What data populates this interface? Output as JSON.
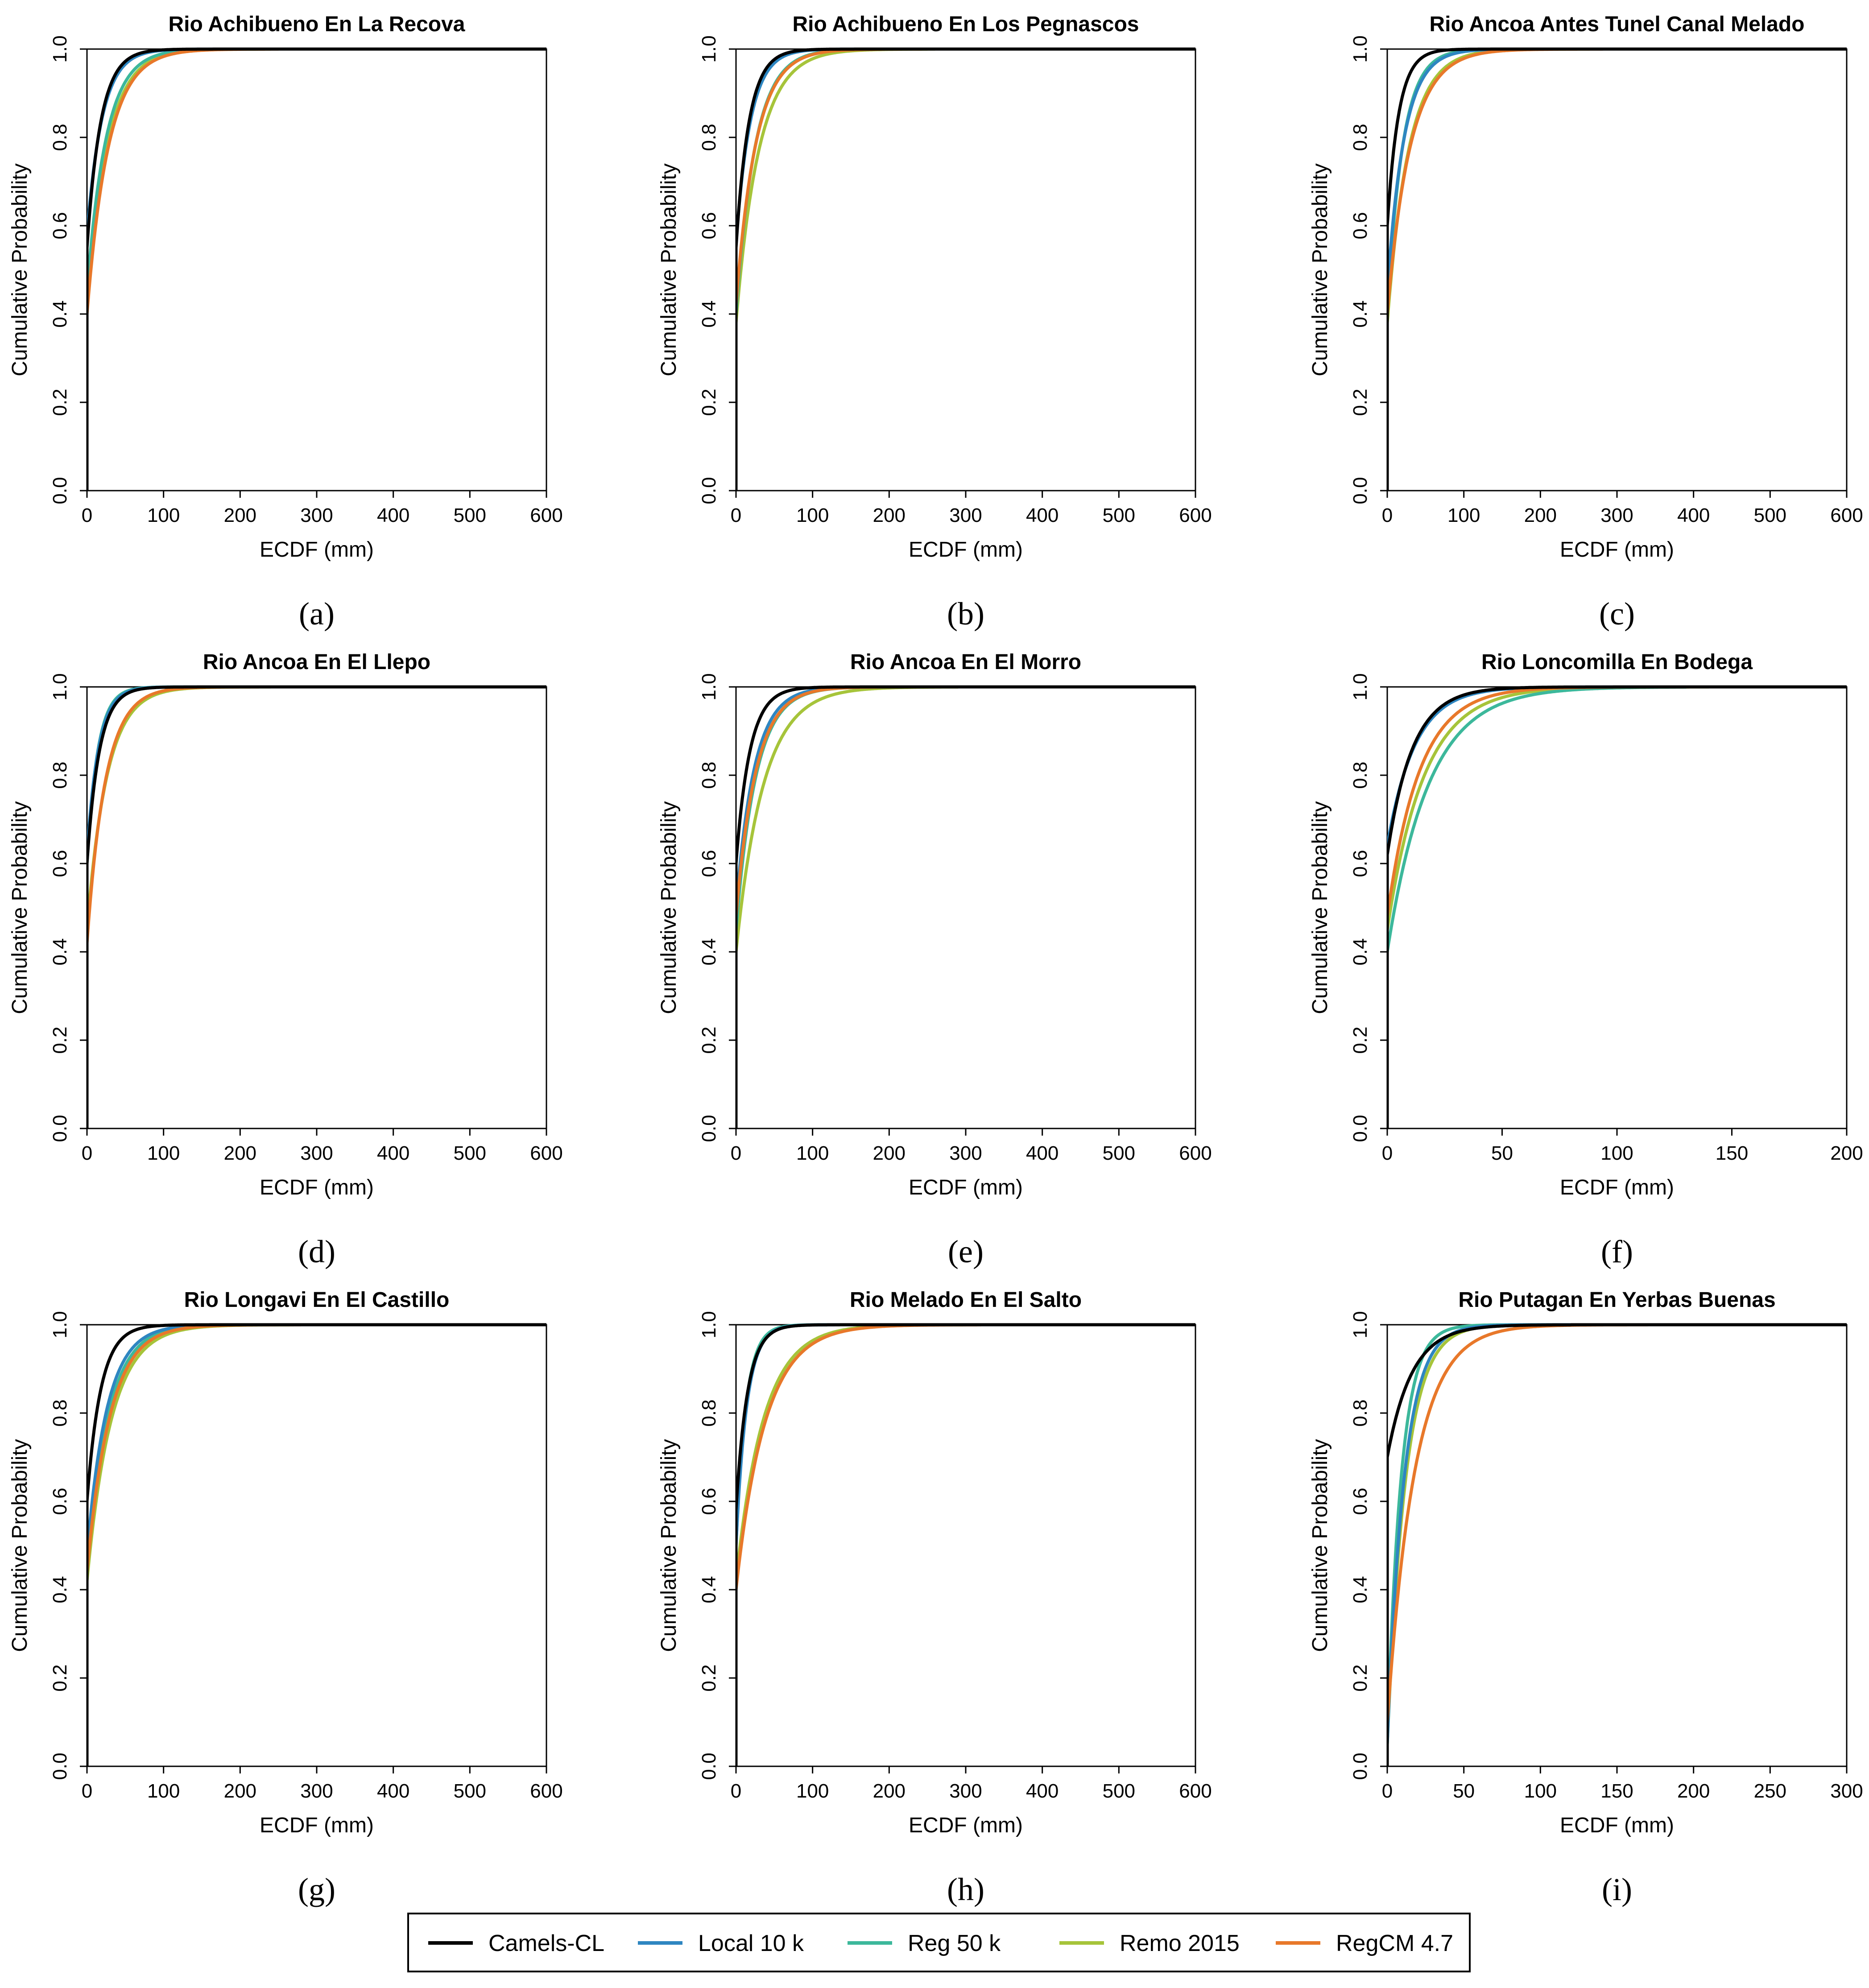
{
  "colors": {
    "Camels-CL": "#000000",
    "Local 10 k": "#2E86C1",
    "Reg 50 k": "#3CB89B",
    "Remo 2015": "#A6C43A",
    "RegCM 4.7": "#E8782A"
  },
  "legend": {
    "items": [
      {
        "name": "Camels-CL",
        "color": "#000000"
      },
      {
        "name": "Local 10 k",
        "color": "#2E86C1"
      },
      {
        "name": "Reg 50 k",
        "color": "#3CB89B"
      },
      {
        "name": "Remo 2015",
        "color": "#A6C43A"
      },
      {
        "name": "RegCM 4.7",
        "color": "#E8782A"
      }
    ]
  },
  "chart_data": [
    {
      "label": "(a)",
      "type": "line",
      "title": "Rio Achibueno En La Recova",
      "xlabel": "ECDF (mm)",
      "ylabel": "Cumulative Probability",
      "xlim": [
        0,
        600
      ],
      "ylim": [
        0,
        1
      ],
      "xticks": [
        0,
        100,
        200,
        300,
        400,
        500,
        600
      ],
      "yticks": [
        0.0,
        0.2,
        0.4,
        0.6,
        0.8,
        1.0
      ],
      "series": [
        {
          "name": "Camels-CL",
          "p0": 0.55,
          "scale": 18,
          "xmax": 180
        },
        {
          "name": "Local 10 k",
          "p0": 0.58,
          "scale": 20,
          "xmax": 200
        },
        {
          "name": "Reg 50 k",
          "p0": 0.45,
          "scale": 25,
          "xmax": 220
        },
        {
          "name": "Remo 2015",
          "p0": 0.42,
          "scale": 27,
          "xmax": 240
        },
        {
          "name": "RegCM 4.7",
          "p0": 0.4,
          "scale": 28,
          "xmax": 250
        }
      ]
    },
    {
      "label": "(b)",
      "type": "line",
      "title": "Rio Achibueno En Los Pegnascos",
      "xlabel": "ECDF (mm)",
      "ylabel": "Cumulative Probability",
      "xlim": [
        0,
        600
      ],
      "ylim": [
        0,
        1
      ],
      "xticks": [
        0,
        100,
        200,
        300,
        400,
        500,
        600
      ],
      "yticks": [
        0.0,
        0.2,
        0.4,
        0.6,
        0.8,
        1.0
      ],
      "series": [
        {
          "name": "Camels-CL",
          "p0": 0.55,
          "scale": 17,
          "xmax": 180
        },
        {
          "name": "Local 10 k",
          "p0": 0.56,
          "scale": 19,
          "xmax": 200
        },
        {
          "name": "Reg 50 k",
          "p0": 0.4,
          "scale": 25,
          "xmax": 230
        },
        {
          "name": "Remo 2015",
          "p0": 0.38,
          "scale": 30,
          "xmax": 260
        },
        {
          "name": "RegCM 4.7",
          "p0": 0.42,
          "scale": 26,
          "xmax": 250
        }
      ]
    },
    {
      "label": "(c)",
      "type": "line",
      "title": "Rio Ancoa Antes Tunel Canal Melado",
      "xlabel": "ECDF (mm)",
      "ylabel": "Cumulative Probability",
      "xlim": [
        0,
        600
      ],
      "ylim": [
        0,
        1
      ],
      "xticks": [
        0,
        100,
        200,
        300,
        400,
        500,
        600
      ],
      "yticks": [
        0.0,
        0.2,
        0.4,
        0.6,
        0.8,
        1.0
      ],
      "series": [
        {
          "name": "Camels-CL",
          "p0": 0.6,
          "scale": 15,
          "xmax": 150
        },
        {
          "name": "Local 10 k",
          "p0": 0.45,
          "scale": 22,
          "xmax": 300
        },
        {
          "name": "Reg 50 k",
          "p0": 0.4,
          "scale": 20,
          "xmax": 320
        },
        {
          "name": "Remo 2015",
          "p0": 0.38,
          "scale": 28,
          "xmax": 310
        },
        {
          "name": "RegCM 4.7",
          "p0": 0.4,
          "scale": 30,
          "xmax": 320
        }
      ]
    },
    {
      "label": "(d)",
      "type": "line",
      "title": "Rio Ancoa En El Llepo",
      "xlabel": "ECDF (mm)",
      "ylabel": "Cumulative Probability",
      "xlim": [
        0,
        600
      ],
      "ylim": [
        0,
        1
      ],
      "xticks": [
        0,
        100,
        200,
        300,
        400,
        500,
        600
      ],
      "yticks": [
        0.0,
        0.2,
        0.4,
        0.6,
        0.8,
        1.0
      ],
      "series": [
        {
          "name": "Camels-CL",
          "p0": 0.6,
          "scale": 16,
          "xmax": 160
        },
        {
          "name": "Local 10 k",
          "p0": 0.62,
          "scale": 15,
          "xmax": 180
        },
        {
          "name": "Reg 50 k",
          "p0": 0.6,
          "scale": 14,
          "xmax": 200
        },
        {
          "name": "Remo 2015",
          "p0": 0.45,
          "scale": 26,
          "xmax": 240
        },
        {
          "name": "RegCM 4.7",
          "p0": 0.42,
          "scale": 24,
          "xmax": 250
        }
      ]
    },
    {
      "label": "(e)",
      "type": "line",
      "title": "Rio Ancoa En El Morro",
      "xlabel": "ECDF (mm)",
      "ylabel": "Cumulative Probability",
      "xlim": [
        0,
        600
      ],
      "ylim": [
        0,
        1
      ],
      "xticks": [
        0,
        100,
        200,
        300,
        400,
        500,
        600
      ],
      "yticks": [
        0.0,
        0.2,
        0.4,
        0.6,
        0.8,
        1.0
      ],
      "series": [
        {
          "name": "Camels-CL",
          "p0": 0.6,
          "scale": 18,
          "xmax": 180
        },
        {
          "name": "Local 10 k",
          "p0": 0.5,
          "scale": 24,
          "xmax": 220
        },
        {
          "name": "Reg 50 k",
          "p0": 0.45,
          "scale": 26,
          "xmax": 250
        },
        {
          "name": "Remo 2015",
          "p0": 0.4,
          "scale": 36,
          "xmax": 290
        },
        {
          "name": "RegCM 4.7",
          "p0": 0.48,
          "scale": 26,
          "xmax": 270
        }
      ]
    },
    {
      "label": "(f)",
      "type": "line",
      "title": "Rio Loncomilla En Bodega",
      "xlabel": "ECDF (mm)",
      "ylabel": "Cumulative Probability",
      "xlim": [
        0,
        200
      ],
      "ylim": [
        0,
        1
      ],
      "xticks": [
        0,
        50,
        100,
        150,
        200
      ],
      "yticks": [
        0.0,
        0.2,
        0.4,
        0.6,
        0.8,
        1.0
      ],
      "series": [
        {
          "name": "Camels-CL",
          "p0": 0.62,
          "scale": 11,
          "xmax": 110
        },
        {
          "name": "Local 10 k",
          "p0": 0.64,
          "scale": 12,
          "xmax": 120
        },
        {
          "name": "Reg 50 k",
          "p0": 0.4,
          "scale": 18,
          "xmax": 130
        },
        {
          "name": "Remo 2015",
          "p0": 0.45,
          "scale": 16,
          "xmax": 140
        },
        {
          "name": "RegCM 4.7",
          "p0": 0.48,
          "scale": 14,
          "xmax": 130
        }
      ]
    },
    {
      "label": "(g)",
      "type": "line",
      "title": "Rio Longavi En El Castillo",
      "xlabel": "ECDF (mm)",
      "ylabel": "Cumulative Probability",
      "xlim": [
        0,
        600
      ],
      "ylim": [
        0,
        1
      ],
      "xticks": [
        0,
        100,
        200,
        300,
        400,
        500,
        600
      ],
      "yticks": [
        0.0,
        0.2,
        0.4,
        0.6,
        0.8,
        1.0
      ],
      "series": [
        {
          "name": "Camels-CL",
          "p0": 0.6,
          "scale": 18,
          "xmax": 160
        },
        {
          "name": "Local 10 k",
          "p0": 0.48,
          "scale": 26,
          "xmax": 220
        },
        {
          "name": "Reg 50 k",
          "p0": 0.45,
          "scale": 28,
          "xmax": 250
        },
        {
          "name": "Remo 2015",
          "p0": 0.42,
          "scale": 32,
          "xmax": 270
        },
        {
          "name": "RegCM 4.7",
          "p0": 0.44,
          "scale": 30,
          "xmax": 280
        }
      ]
    },
    {
      "label": "(h)",
      "type": "line",
      "title": "Rio Melado En El Salto",
      "xlabel": "ECDF (mm)",
      "ylabel": "Cumulative Probability",
      "xlim": [
        0,
        600
      ],
      "ylim": [
        0,
        1
      ],
      "xticks": [
        0,
        100,
        200,
        300,
        400,
        500,
        600
      ],
      "yticks": [
        0.0,
        0.2,
        0.4,
        0.6,
        0.8,
        1.0
      ],
      "series": [
        {
          "name": "Camels-CL",
          "p0": 0.58,
          "scale": 15,
          "xmax": 160
        },
        {
          "name": "Local 10 k",
          "p0": 0.5,
          "scale": 14,
          "xmax": 200
        },
        {
          "name": "Reg 50 k",
          "p0": 0.5,
          "scale": 13,
          "xmax": 190
        },
        {
          "name": "Remo 2015",
          "p0": 0.42,
          "scale": 36,
          "xmax": 300
        },
        {
          "name": "RegCM 4.7",
          "p0": 0.4,
          "scale": 38,
          "xmax": 320
        }
      ]
    },
    {
      "label": "(i)",
      "type": "line",
      "title": "Rio Putagan En Yerbas Buenas",
      "xlabel": "ECDF (mm)",
      "ylabel": "Cumulative Probability",
      "xlim": [
        0,
        300
      ],
      "ylim": [
        0,
        1
      ],
      "xticks": [
        0,
        50,
        100,
        150,
        200,
        250,
        300
      ],
      "yticks": [
        0.0,
        0.2,
        0.4,
        0.6,
        0.8,
        1.0
      ],
      "series": [
        {
          "name": "Camels-CL",
          "p0": 0.7,
          "scale": 16,
          "xmax": 120
        },
        {
          "name": "Local 10 k",
          "p0": 0.05,
          "scale": 11,
          "xmax": 140
        },
        {
          "name": "Reg 50 k",
          "p0": 0.05,
          "scale": 9,
          "xmax": 120
        },
        {
          "name": "Remo 2015",
          "p0": 0.05,
          "scale": 12,
          "xmax": 160
        },
        {
          "name": "RegCM 4.7",
          "p0": 0.1,
          "scale": 18,
          "xmax": 170
        }
      ]
    }
  ]
}
